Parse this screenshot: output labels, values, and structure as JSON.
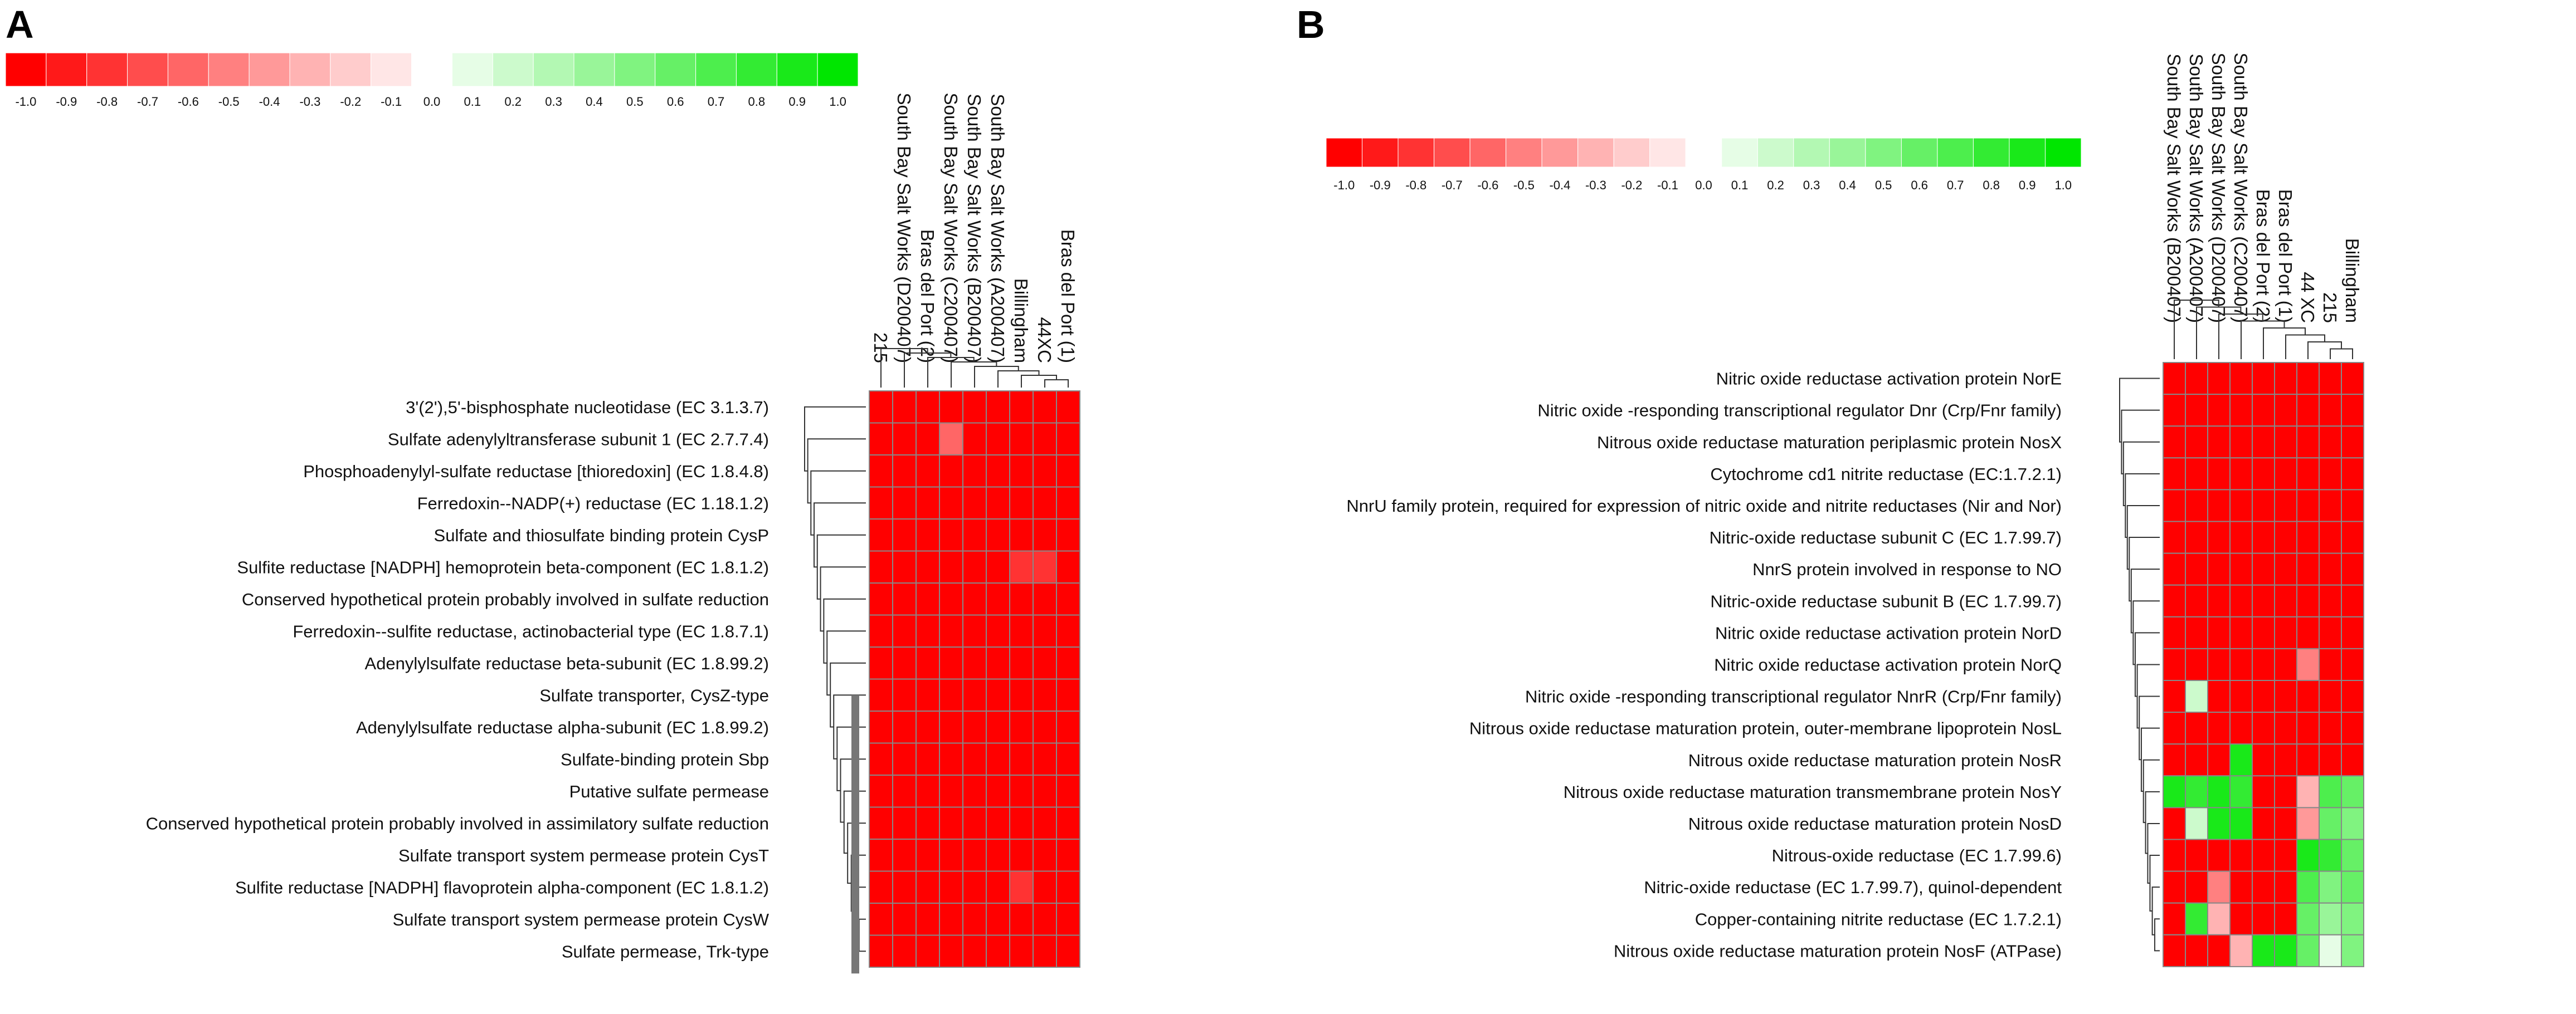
{
  "colors": {
    "negative": "#ff0000",
    "neutral": "#ffffff",
    "positive": "#00e600",
    "grid": "#888888",
    "dendrogram": "#333333",
    "dendrogram_stub": "#777777"
  },
  "chart_data": [
    {
      "type": "heatmap",
      "panel_label": "A",
      "title": "",
      "color_scale": {
        "min": -1.0,
        "max": 1.0,
        "low_color": "red",
        "mid_color": "white",
        "high_color": "green"
      },
      "legend_ticks": [
        "-1.0",
        "-0.9",
        "-0.8",
        "-0.7",
        "-0.6",
        "-0.5",
        "-0.4",
        "-0.3",
        "-0.2",
        "-0.1",
        "0.0",
        "0.1",
        "0.2",
        "0.3",
        "0.4",
        "0.5",
        "0.6",
        "0.7",
        "0.8",
        "0.9",
        "1.0"
      ],
      "columns": [
        "215",
        "South Bay Salt Works (D200407)",
        "Bras del Port (2)",
        "South Bay Salt Works (C200407)",
        "South Bay Salt Works (B200407)",
        "South Bay Salt Works (A200407)",
        "Billingham",
        "44XC",
        "Bras del Port (1)"
      ],
      "rows": [
        "3'(2'),5'-bisphosphate nucleotidase (EC 3.1.3.7)",
        "Sulfate adenylyltransferase subunit 1 (EC 2.7.7.4)",
        "Phosphoadenylyl-sulfate reductase [thioredoxin] (EC 1.8.4.8)",
        "Ferredoxin--NADP(+) reductase (EC 1.18.1.2)",
        "Sulfate and thiosulfate binding protein CysP",
        "Sulfite reductase [NADPH] hemoprotein beta-component (EC 1.8.1.2)",
        "Conserved hypothetical protein probably involved in sulfate reduction",
        "Ferredoxin--sulfite reductase, actinobacterial type (EC 1.8.7.1)",
        "Adenylylsulfate reductase beta-subunit (EC 1.8.99.2)",
        "Sulfate transporter, CysZ-type",
        "Adenylylsulfate reductase alpha-subunit (EC 1.8.99.2)",
        "Sulfate-binding protein Sbp",
        "Putative sulfate permease",
        "Conserved hypothetical protein probably involved in assimilatory sulfate reduction",
        "Sulfate transport system permease protein CysT",
        "Sulfite reductase [NADPH] flavoprotein alpha-component (EC 1.8.1.2)",
        "Sulfate transport system permease protein CysW",
        "Sulfate permease, Trk-type"
      ],
      "values": [
        [
          -1,
          -1,
          -1,
          -1,
          -1,
          -1,
          -1,
          -1,
          -1
        ],
        [
          -1,
          -1,
          -1,
          -0.6,
          -1,
          -1,
          -1,
          -1,
          -1
        ],
        [
          -1,
          -1,
          -1,
          -1,
          -1,
          -1,
          -1,
          -1,
          -1
        ],
        [
          -1,
          -1,
          -1,
          -1,
          -1,
          -1,
          -1,
          -1,
          -1
        ],
        [
          -1,
          -1,
          -1,
          -1,
          -1,
          -1,
          -1,
          -1,
          -1
        ],
        [
          -1,
          -1,
          -1,
          -1,
          -1,
          -1,
          -0.8,
          -0.8,
          -1
        ],
        [
          -1,
          -1,
          -1,
          -1,
          -1,
          -1,
          -1,
          -1,
          -1
        ],
        [
          -1,
          -1,
          -1,
          -1,
          -1,
          -1,
          -1,
          -1,
          -1
        ],
        [
          -1,
          -1,
          -1,
          -1,
          -1,
          -1,
          -1,
          -1,
          -1
        ],
        [
          -1,
          -1,
          -1,
          -1,
          -1,
          -1,
          -1,
          -1,
          -1
        ],
        [
          -1,
          -1,
          -1,
          -1,
          -1,
          -1,
          -1,
          -1,
          -1
        ],
        [
          -1,
          -1,
          -1,
          -1,
          -1,
          -1,
          -1,
          -1,
          -1
        ],
        [
          -1,
          -1,
          -1,
          -1,
          -1,
          -1,
          -1,
          -1,
          -1
        ],
        [
          -1,
          -1,
          -1,
          -1,
          -1,
          -1,
          -1,
          -1,
          -1
        ],
        [
          -1,
          -1,
          -1,
          -1,
          -1,
          -1,
          -1,
          -1,
          -1
        ],
        [
          -1,
          -1,
          -1,
          -1,
          -1,
          -1,
          -0.8,
          -1,
          -1
        ],
        [
          -1,
          -1,
          -1,
          -1,
          -1,
          -1,
          -1,
          -1,
          -1
        ],
        [
          -1,
          -1,
          -1,
          -1,
          -1,
          -1,
          -1,
          -1,
          -1
        ]
      ]
    },
    {
      "type": "heatmap",
      "panel_label": "B",
      "title": "",
      "color_scale": {
        "min": -1.0,
        "max": 1.0,
        "low_color": "red",
        "mid_color": "white",
        "high_color": "green"
      },
      "legend_ticks": [
        "-1.0",
        "-0.9",
        "-0.8",
        "-0.7",
        "-0.6",
        "-0.5",
        "-0.4",
        "-0.3",
        "-0.2",
        "-0.1",
        "0.0",
        "0.1",
        "0.2",
        "0.3",
        "0.4",
        "0.5",
        "0.6",
        "0.7",
        "0.8",
        "0.9",
        "1.0"
      ],
      "columns": [
        "South Bay Salt Works (B200407)",
        "South Bay Salt Works (A200407)",
        "South Bay Salt Works (D200407)",
        "South Bay Salt Works (C200407)",
        "Bras del Port (2)",
        "Bras del Port (1)",
        "44 XC",
        "215",
        "Billingham"
      ],
      "rows": [
        "Nitric oxide reductase activation protein NorE",
        "Nitric oxide -responding transcriptional regulator Dnr (Crp/Fnr family)",
        "Nitrous oxide reductase maturation periplasmic protein NosX",
        "Cytochrome cd1 nitrite reductase (EC:1.7.2.1)",
        "NnrU family protein, required for expression of nitric oxide and nitrite reductases (Nir and Nor)",
        "Nitric-oxide reductase subunit C (EC 1.7.99.7)",
        "NnrS protein involved in response to NO",
        "Nitric-oxide reductase subunit B (EC 1.7.99.7)",
        "Nitric oxide reductase activation protein NorD",
        "Nitric oxide reductase activation protein NorQ",
        "Nitric oxide -responding transcriptional regulator NnrR (Crp/Fnr family)",
        "Nitrous oxide reductase maturation protein, outer-membrane lipoprotein NosL",
        "Nitrous oxide reductase maturation protein NosR",
        "Nitrous oxide reductase maturation transmembrane protein NosY",
        "Nitrous oxide reductase maturation protein NosD",
        "Nitrous-oxide reductase (EC 1.7.99.6)",
        "Nitric-oxide reductase (EC 1.7.99.7), quinol-dependent",
        "Copper-containing nitrite reductase (EC 1.7.2.1)",
        "Nitrous oxide reductase maturation protein NosF (ATPase)"
      ],
      "values": [
        [
          -1,
          -1,
          -1,
          -1,
          -1,
          -1,
          -1,
          -1,
          -1
        ],
        [
          -1,
          -1,
          -1,
          -1,
          -1,
          -1,
          -1,
          -1,
          -1
        ],
        [
          -1,
          -1,
          -1,
          -1,
          -1,
          -1,
          -1,
          -1,
          -1
        ],
        [
          -1,
          -1,
          -1,
          -1,
          -1,
          -1,
          -1,
          -1,
          -1
        ],
        [
          -1,
          -1,
          -1,
          -1,
          -1,
          -1,
          -1,
          -1,
          -1
        ],
        [
          -1,
          -1,
          -1,
          -1,
          -1,
          -1,
          -1,
          -1,
          -1
        ],
        [
          -1,
          -1,
          -1,
          -1,
          -1,
          -1,
          -1,
          -1,
          -1
        ],
        [
          -1,
          -1,
          -1,
          -1,
          -1,
          -1,
          -1,
          -1,
          -1
        ],
        [
          -1,
          -1,
          -1,
          -1,
          -1,
          -1,
          -1,
          -1,
          -1
        ],
        [
          -1,
          -1,
          -1,
          -1,
          -1,
          -1,
          -0.5,
          -1,
          -1
        ],
        [
          -1,
          0.2,
          -1,
          -1,
          -1,
          -1,
          -1,
          -1,
          -1
        ],
        [
          -1,
          -1,
          -1,
          -1,
          -1,
          -1,
          -1,
          -1,
          -1
        ],
        [
          -1,
          -1,
          -1,
          0.9,
          -1,
          -1,
          -1,
          -1,
          -1
        ],
        [
          0.9,
          0.8,
          0.9,
          0.8,
          -1,
          -1,
          -0.3,
          0.7,
          0.6
        ],
        [
          -1,
          0.2,
          0.9,
          0.9,
          -1,
          -1,
          -0.4,
          0.6,
          0.5
        ],
        [
          -1,
          -1,
          -1,
          -1,
          -1,
          -1,
          0.9,
          0.8,
          0.6
        ],
        [
          -1,
          -1,
          -0.5,
          -1,
          -1,
          -1,
          0.7,
          0.5,
          0.6
        ],
        [
          -1,
          0.8,
          -0.3,
          -1,
          -1,
          -1,
          0.6,
          0.4,
          0.5
        ],
        [
          -1,
          -1,
          -1,
          -0.3,
          0.9,
          0.9,
          0.6,
          0.1,
          0.5
        ]
      ]
    }
  ]
}
